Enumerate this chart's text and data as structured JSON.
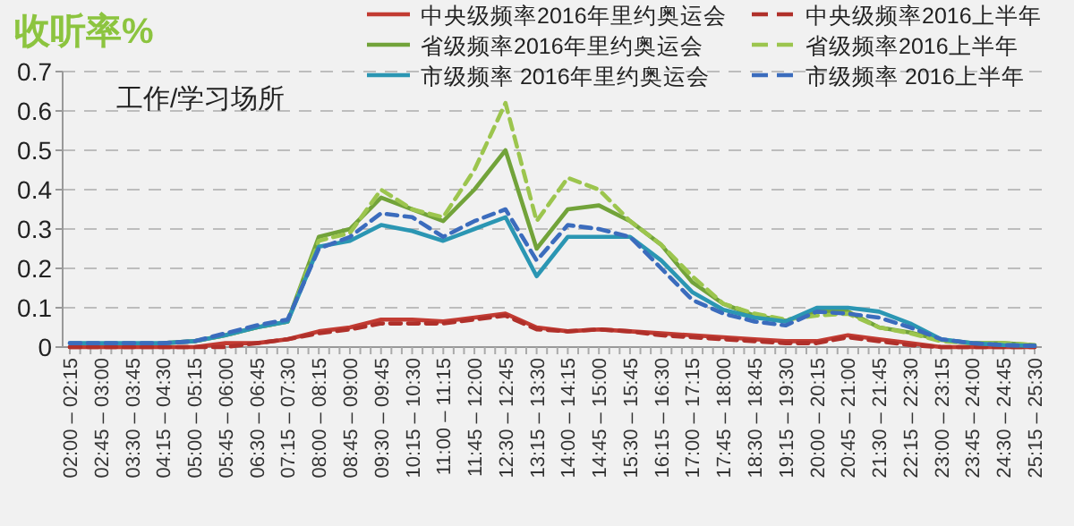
{
  "chart_data": {
    "type": "line",
    "title": "收听率%",
    "annotations": [
      "工作/学习场所"
    ],
    "categories": [
      "02:00 – 02:15",
      "02:45 – 03:00",
      "03:30 – 03:45",
      "04:15 – 04:30",
      "05:00 – 05:15",
      "05:45 – 06:00",
      "06:30 – 06:45",
      "07:15 – 07:30",
      "08:00 – 08:15",
      "08:45 – 09:00",
      "09:30 – 09:45",
      "10:15 – 10:30",
      "11:00 – 11:15",
      "11:45 – 12:00",
      "12:30 – 12:45",
      "13:15 – 13:30",
      "14:00 – 14:15",
      "14:45 – 15:00",
      "15:30 – 15:45",
      "16:15 – 16:30",
      "17:00 – 17:15",
      "17:45 – 18:00",
      "18:30 – 18:45",
      "19:15 – 19:30",
      "20:00 – 20:15",
      "20:45 – 21:00",
      "21:30 – 21:45",
      "22:15 – 22:30",
      "23:00 – 23:15",
      "23:45 – 24:00",
      "24:30 – 24:45",
      "25:15 – 25:30"
    ],
    "series": [
      {
        "name": "中央级频率2016年里约奥运会",
        "color": "#c23b32",
        "line_style": "solid",
        "values": [
          0,
          0,
          0,
          0,
          0,
          0.01,
          0.01,
          0.02,
          0.04,
          0.05,
          0.07,
          0.07,
          0.065,
          0.075,
          0.085,
          0.05,
          0.04,
          0.045,
          0.04,
          0.035,
          0.03,
          0.025,
          0.02,
          0.015,
          0.015,
          0.03,
          0.02,
          0.01,
          0,
          0,
          0,
          0
        ]
      },
      {
        "name": "中央级频率2016上半年",
        "color": "#b0302a",
        "line_style": "dashed",
        "values": [
          0,
          0,
          0,
          0,
          0,
          0,
          0.01,
          0.02,
          0.035,
          0.045,
          0.06,
          0.06,
          0.06,
          0.07,
          0.08,
          0.045,
          0.04,
          0.045,
          0.04,
          0.03,
          0.025,
          0.02,
          0.015,
          0.01,
          0.01,
          0.025,
          0.015,
          0.005,
          0,
          0,
          0,
          0
        ]
      },
      {
        "name": "省级频率2016年里约奥运会",
        "color": "#72a33a",
        "line_style": "solid",
        "values": [
          null,
          null,
          null,
          0.01,
          0.015,
          0.03,
          0.05,
          0.065,
          0.28,
          0.3,
          0.38,
          0.35,
          0.32,
          0.4,
          0.5,
          0.25,
          0.35,
          0.36,
          0.32,
          0.26,
          0.165,
          0.11,
          0.08,
          0.067,
          0.09,
          0.09,
          0.05,
          0.037,
          0.018,
          0.01,
          0.01,
          0.005
        ]
      },
      {
        "name": "省级频率2016上半年",
        "color": "#9cc54e",
        "line_style": "dashed",
        "values": [
          null,
          null,
          null,
          null,
          0.015,
          0.03,
          0.05,
          0.065,
          0.27,
          0.29,
          0.4,
          0.35,
          0.33,
          0.45,
          0.62,
          0.32,
          0.43,
          0.4,
          0.32,
          0.26,
          0.18,
          0.11,
          0.085,
          0.07,
          0.08,
          0.085,
          0.05,
          0.035,
          0.015,
          0.01,
          0.01,
          0.005
        ]
      },
      {
        "name": "市级频率 2016年里约奥运会",
        "color": "#2b96b3",
        "line_style": "solid",
        "values": [
          0.01,
          0.01,
          0.01,
          0.01,
          0.015,
          0.03,
          0.05,
          0.065,
          0.255,
          0.27,
          0.31,
          0.295,
          0.27,
          0.3,
          0.33,
          0.18,
          0.28,
          0.28,
          0.28,
          0.22,
          0.14,
          0.095,
          0.075,
          0.065,
          0.1,
          0.1,
          0.09,
          0.06,
          0.02,
          0.01,
          0.005,
          0.003
        ]
      },
      {
        "name": "市级频率 2016上半年",
        "color": "#3b6cbd",
        "line_style": "dashed",
        "values": [
          0.01,
          0.01,
          0.01,
          0.01,
          0.015,
          0.035,
          0.055,
          0.07,
          0.25,
          0.28,
          0.34,
          0.33,
          0.28,
          0.32,
          0.35,
          0.22,
          0.31,
          0.3,
          0.28,
          0.2,
          0.12,
          0.085,
          0.065,
          0.055,
          0.09,
          0.085,
          0.075,
          0.05,
          0.02,
          0.01,
          0.005,
          0.003
        ]
      }
    ],
    "ylim": [
      0,
      0.7
    ],
    "yticks": [
      0,
      0.1,
      0.2,
      0.3,
      0.4,
      0.5,
      0.6,
      0.7
    ],
    "grid": "y",
    "legend": "top right"
  }
}
